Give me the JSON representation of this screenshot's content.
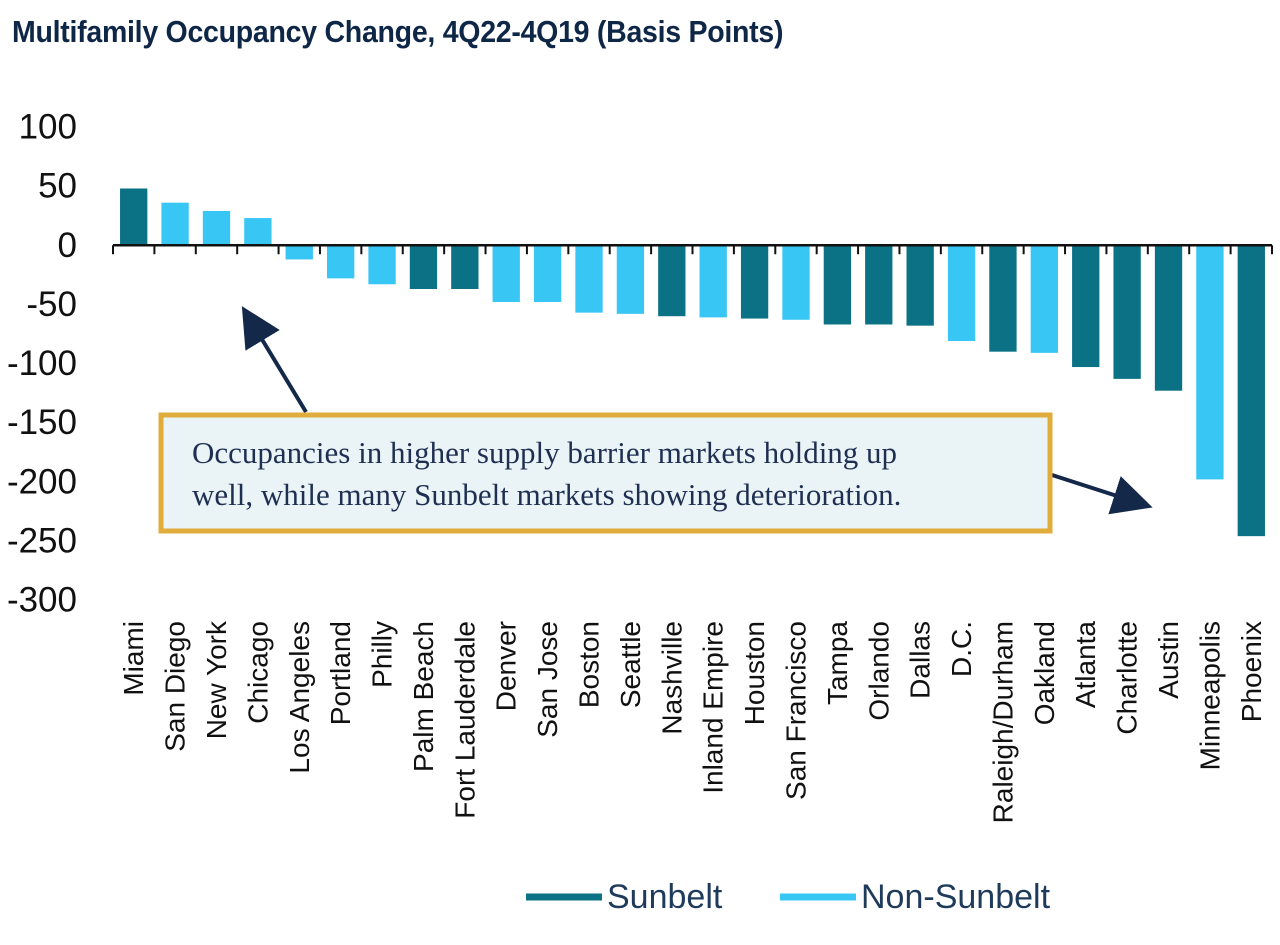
{
  "chart_data": {
    "type": "bar",
    "title": "Multifamily Occupancy Change, 4Q22-4Q19 (Basis Points)",
    "xlabel": "",
    "ylabel": "",
    "ylim": [
      -300,
      100
    ],
    "yticks": [
      100,
      50,
      0,
      -50,
      -100,
      -150,
      -200,
      -250,
      -300
    ],
    "categories": [
      "Miami",
      "San Diego",
      "New York",
      "Chicago",
      "Los Angeles",
      "Portland",
      "Philly",
      "Palm Beach",
      "Fort Lauderdale",
      "Denver",
      "San Jose",
      "Boston",
      "Seattle",
      "Nashville",
      "Inland Empire",
      "Houston",
      "San Francisco",
      "Tampa",
      "Orlando",
      "Dallas",
      "D.C.",
      "Raleigh/Durham",
      "Oakland",
      "Atlanta",
      "Charlotte",
      "Austin",
      "Minneapolis",
      "Phoenix"
    ],
    "values": [
      48,
      36,
      29,
      23,
      -12,
      -28,
      -33,
      -37,
      -37,
      -48,
      -48,
      -57,
      -58,
      -60,
      -61,
      -62,
      -63,
      -67,
      -67,
      -68,
      -81,
      -90,
      -91,
      -103,
      -113,
      -123,
      -198,
      -246
    ],
    "groups": [
      "Sunbelt",
      "Non-Sunbelt",
      "Non-Sunbelt",
      "Non-Sunbelt",
      "Non-Sunbelt",
      "Non-Sunbelt",
      "Non-Sunbelt",
      "Sunbelt",
      "Sunbelt",
      "Non-Sunbelt",
      "Non-Sunbelt",
      "Non-Sunbelt",
      "Non-Sunbelt",
      "Sunbelt",
      "Non-Sunbelt",
      "Sunbelt",
      "Non-Sunbelt",
      "Sunbelt",
      "Sunbelt",
      "Sunbelt",
      "Non-Sunbelt",
      "Sunbelt",
      "Non-Sunbelt",
      "Sunbelt",
      "Sunbelt",
      "Sunbelt",
      "Non-Sunbelt",
      "Sunbelt"
    ],
    "legend": [
      {
        "name": "Sunbelt",
        "color": "#0b7285"
      },
      {
        "name": "Non-Sunbelt",
        "color": "#38c6f4"
      }
    ],
    "legend_position": "bottom",
    "grid": false,
    "annotation": {
      "lines": [
        "Occupancies in higher supply barrier markets holding up",
        "well, while many Sunbelt markets showing deterioration."
      ],
      "box_fill": "#eaf3f5",
      "box_border": "#e0ac3c",
      "arrow_color": "#14284a"
    }
  }
}
